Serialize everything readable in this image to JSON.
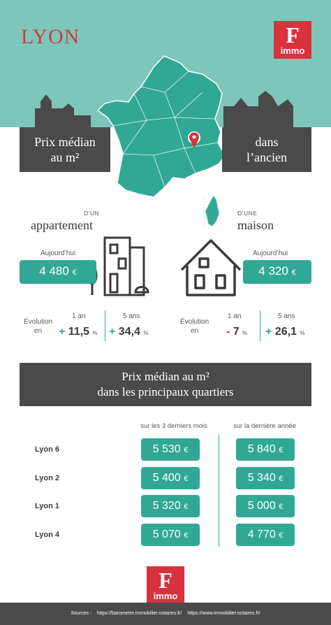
{
  "header": {
    "city": "LYON",
    "logo_f": "F",
    "logo_immo": "immo"
  },
  "banner": {
    "left_text_line1": "Prix médian",
    "left_text_line2": "au m²",
    "right_text_line1": "dans",
    "right_text_line2": "l’ancien"
  },
  "apartment": {
    "prefix": "D’UN",
    "type": "appartement",
    "today_label": "Aujourd’hui",
    "price": "4 480",
    "currency": "€",
    "evolution_label_line1": "Évolution",
    "evolution_label_line2": "en",
    "period_1": "1 an",
    "period_5": "5 ans",
    "evo_1_sign": "+",
    "evo_1_value": "11,5",
    "evo_5_sign": "+",
    "evo_5_value": "34,4",
    "pct": "%"
  },
  "house": {
    "prefix": "D’UNE",
    "type": "maison",
    "today_label": "Aujourd’hui",
    "price": "4 320",
    "currency": "€",
    "evolution_label_line1": "Évolution",
    "evolution_label_line2": "en",
    "period_1": "1 an",
    "period_5": "5 ans",
    "evo_1_sign": "-",
    "evo_1_value": "7",
    "evo_5_sign": "+",
    "evo_5_value": "26,1",
    "pct": "%"
  },
  "districts": {
    "title_line1": "Prix médian au m²",
    "title_line2": "dans les principaux quartiers",
    "col_3months": "sur les 3 derniers mois",
    "col_year": "sur la dernière année",
    "currency": "€",
    "rows": [
      {
        "name": "Lyon 6",
        "three_months": "5 530",
        "year": "5 840"
      },
      {
        "name": "Lyon 2",
        "three_months": "5 400",
        "year": "5 340"
      },
      {
        "name": "Lyon 1",
        "three_months": "5 320",
        "year": "5 000"
      },
      {
        "name": "Lyon 4",
        "three_months": "5 070",
        "year": "4 770"
      }
    ]
  },
  "footer": {
    "sources_label": "Sources :",
    "source_1": "https://barometre.immobilier.notaires.fr/",
    "source_2": "https://www.immobilier.notaires.fr/"
  },
  "colors": {
    "teal_light": "#7ec6b9",
    "teal": "#31a896",
    "red": "#d8323f",
    "dark": "#4a4a4a"
  },
  "icons": [
    "location-pin-icon",
    "apartment-building-icon",
    "house-icon",
    "corsica-map-icon",
    "france-map-icon"
  ]
}
